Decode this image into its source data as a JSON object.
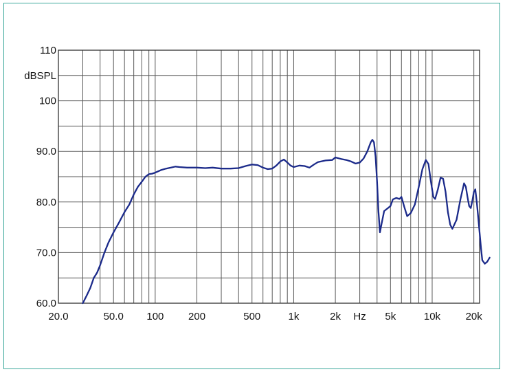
{
  "chart_data": {
    "type": "line",
    "title": "",
    "xlabel": "Hz",
    "ylabel": "dBSPL",
    "x_scale": "log",
    "xlim": [
      20,
      22000
    ],
    "ylim": [
      60,
      110
    ],
    "y_ticks": [
      {
        "value": 110,
        "label": "110"
      },
      {
        "value": 100,
        "label": "100"
      },
      {
        "value": 90,
        "label": "90.0"
      },
      {
        "value": 80,
        "label": "80.0"
      },
      {
        "value": 70,
        "label": "70.0"
      },
      {
        "value": 60,
        "label": "60.0"
      }
    ],
    "x_ticks": [
      {
        "value": 20,
        "label": "20.0"
      },
      {
        "value": 50,
        "label": "50.0"
      },
      {
        "value": 100,
        "label": "100"
      },
      {
        "value": 200,
        "label": "200"
      },
      {
        "value": 500,
        "label": "500"
      },
      {
        "value": 1000,
        "label": "1k"
      },
      {
        "value": 2000,
        "label": "2k"
      },
      {
        "value": 5000,
        "label": "5k"
      },
      {
        "value": 10000,
        "label": "10k"
      },
      {
        "value": 20000,
        "label": "20k"
      }
    ],
    "grid": true,
    "series": [
      {
        "color": "#1b2a8a",
        "points": [
          [
            30,
            60.0
          ],
          [
            32,
            61.5
          ],
          [
            34,
            63.0
          ],
          [
            36,
            65.0
          ],
          [
            38,
            66.0
          ],
          [
            40,
            67.5
          ],
          [
            43,
            70.0
          ],
          [
            46,
            72.0
          ],
          [
            50,
            74.0
          ],
          [
            55,
            76.0
          ],
          [
            60,
            78.0
          ],
          [
            65,
            79.5
          ],
          [
            70,
            81.5
          ],
          [
            75,
            83.0
          ],
          [
            80,
            84.0
          ],
          [
            85,
            85.0
          ],
          [
            90,
            85.5
          ],
          [
            95,
            85.6
          ],
          [
            100,
            85.8
          ],
          [
            110,
            86.3
          ],
          [
            120,
            86.6
          ],
          [
            130,
            86.8
          ],
          [
            140,
            87.0
          ],
          [
            150,
            86.9
          ],
          [
            170,
            86.8
          ],
          [
            200,
            86.8
          ],
          [
            230,
            86.7
          ],
          [
            260,
            86.8
          ],
          [
            300,
            86.6
          ],
          [
            350,
            86.6
          ],
          [
            400,
            86.7
          ],
          [
            450,
            87.1
          ],
          [
            500,
            87.4
          ],
          [
            550,
            87.3
          ],
          [
            600,
            86.8
          ],
          [
            650,
            86.5
          ],
          [
            700,
            86.6
          ],
          [
            750,
            87.2
          ],
          [
            800,
            88.0
          ],
          [
            850,
            88.4
          ],
          [
            900,
            87.8
          ],
          [
            950,
            87.2
          ],
          [
            1000,
            86.9
          ],
          [
            1100,
            87.2
          ],
          [
            1200,
            87.1
          ],
          [
            1300,
            86.8
          ],
          [
            1400,
            87.4
          ],
          [
            1500,
            87.9
          ],
          [
            1700,
            88.2
          ],
          [
            1900,
            88.3
          ],
          [
            2000,
            88.8
          ],
          [
            2200,
            88.5
          ],
          [
            2400,
            88.3
          ],
          [
            2600,
            88.0
          ],
          [
            2800,
            87.6
          ],
          [
            3000,
            87.8
          ],
          [
            3200,
            88.6
          ],
          [
            3400,
            90.0
          ],
          [
            3600,
            91.8
          ],
          [
            3700,
            92.3
          ],
          [
            3800,
            91.8
          ],
          [
            3900,
            89.0
          ],
          [
            4000,
            84.0
          ],
          [
            4100,
            78.0
          ],
          [
            4200,
            74.0
          ],
          [
            4300,
            75.5
          ],
          [
            4500,
            78.2
          ],
          [
            4800,
            78.8
          ],
          [
            5000,
            79.2
          ],
          [
            5200,
            80.5
          ],
          [
            5500,
            80.8
          ],
          [
            5800,
            80.6
          ],
          [
            6000,
            81.0
          ],
          [
            6300,
            79.0
          ],
          [
            6600,
            77.2
          ],
          [
            7000,
            77.8
          ],
          [
            7500,
            79.5
          ],
          [
            8000,
            83.0
          ],
          [
            8500,
            86.5
          ],
          [
            9000,
            88.3
          ],
          [
            9400,
            87.5
          ],
          [
            9800,
            84.0
          ],
          [
            10200,
            81.0
          ],
          [
            10500,
            80.6
          ],
          [
            11000,
            82.5
          ],
          [
            11500,
            84.8
          ],
          [
            12000,
            84.6
          ],
          [
            12500,
            82.0
          ],
          [
            13000,
            78.0
          ],
          [
            13500,
            75.5
          ],
          [
            14000,
            74.7
          ],
          [
            15000,
            76.5
          ],
          [
            16000,
            80.5
          ],
          [
            17000,
            83.7
          ],
          [
            17500,
            83.0
          ],
          [
            18000,
            81.0
          ],
          [
            18500,
            79.2
          ],
          [
            19000,
            78.8
          ],
          [
            19500,
            80.2
          ],
          [
            20000,
            82.0
          ],
          [
            20500,
            82.5
          ],
          [
            21000,
            80.0
          ],
          [
            21500,
            77.0
          ],
          [
            22000,
            74.0
          ],
          [
            22500,
            71.0
          ],
          [
            23000,
            68.5
          ],
          [
            24000,
            67.8
          ],
          [
            25000,
            68.2
          ],
          [
            26000,
            69.0
          ]
        ]
      }
    ]
  }
}
